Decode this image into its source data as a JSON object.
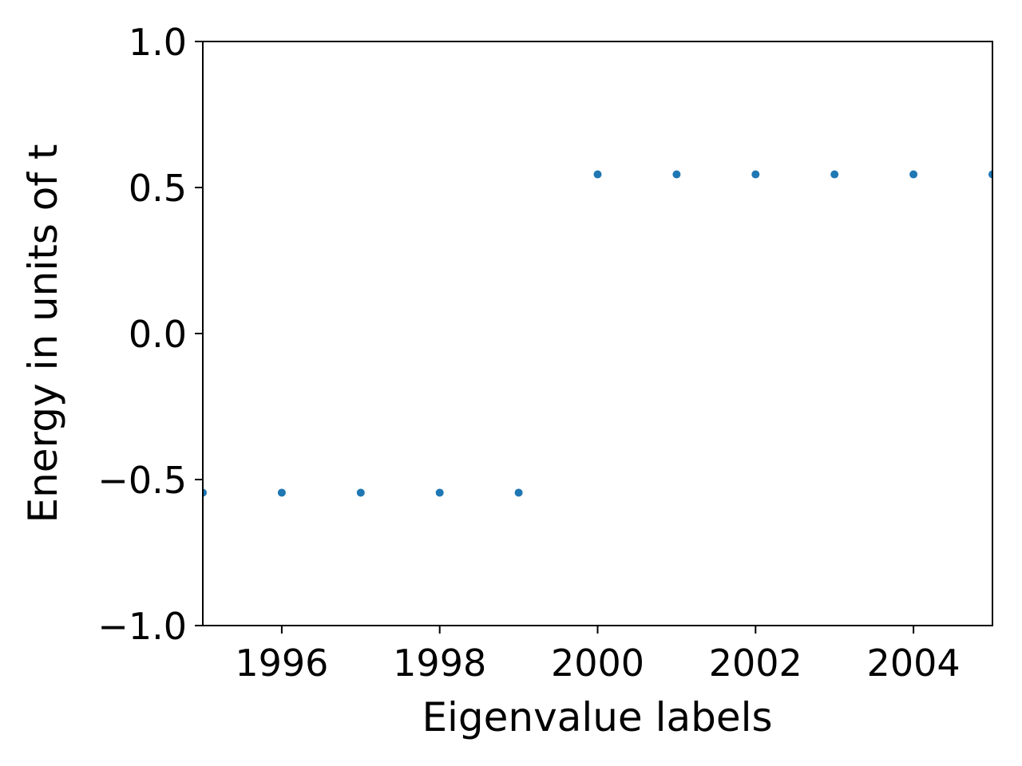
{
  "chart_data": {
    "type": "scatter",
    "title": "",
    "xlabel": "Eigenvalue labels",
    "ylabel": "Energy in units of t",
    "xlim": [
      1995,
      2005
    ],
    "ylim": [
      -1.0,
      1.0
    ],
    "xticks": [
      1996,
      1998,
      2000,
      2002,
      2004
    ],
    "xtick_labels": [
      "1996",
      "1998",
      "2000",
      "2002",
      "2004"
    ],
    "yticks": [
      -1.0,
      -0.5,
      0.0,
      0.5,
      1.0
    ],
    "ytick_labels": [
      "−1.0",
      "−0.5",
      "0.0",
      "0.5",
      "1.0"
    ],
    "grid": false,
    "series": [
      {
        "color": "#1f77b4",
        "x": [
          1995,
          1996,
          1997,
          1998,
          1999,
          2000,
          2001,
          2002,
          2003,
          2004,
          2005
        ],
        "y": [
          -0.545,
          -0.545,
          -0.545,
          -0.545,
          -0.545,
          0.545,
          0.545,
          0.545,
          0.545,
          0.545,
          0.545
        ]
      }
    ]
  }
}
